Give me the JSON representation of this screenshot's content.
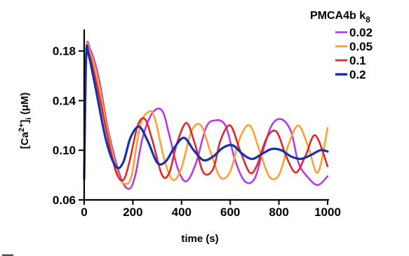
{
  "chart_data": {
    "type": "line",
    "xlabel": "time (s)",
    "ylabel": "[Ca2+]i (μM)",
    "ylabel_parts": {
      "base": "[Ca",
      "sup": "2+",
      "close": "]",
      "sub": "i",
      "unit": " (μM)"
    },
    "xlim": [
      0,
      1000
    ],
    "ylim": [
      0.06,
      0.19
    ],
    "x_ticks": [
      0,
      200,
      400,
      600,
      800,
      1000
    ],
    "x_tick_labels": [
      "0",
      "200",
      "400",
      "600",
      "800",
      "1000"
    ],
    "y_ticks": [
      0.06,
      0.1,
      0.14,
      0.18
    ],
    "y_tick_labels": [
      "0.06",
      "0.10",
      "0.14",
      "0.18"
    ],
    "legend": {
      "title": "PMCA4b k",
      "title_sub": "8",
      "placement": "top-right"
    },
    "grid": false,
    "series": [
      {
        "name": "0.02",
        "color": "#b43ce6",
        "x": [
          0,
          8,
          25,
          60,
          100,
          150,
          185,
          210,
          240,
          280,
          320,
          350,
          385,
          420,
          460,
          500,
          535,
          580,
          620,
          660,
          700,
          735,
          770,
          810,
          850,
          880,
          920,
          960,
          1000
        ],
        "y": [
          0.077,
          0.178,
          0.181,
          0.158,
          0.115,
          0.078,
          0.069,
          0.08,
          0.11,
          0.13,
          0.132,
          0.112,
          0.085,
          0.075,
          0.09,
          0.118,
          0.124,
          0.12,
          0.092,
          0.075,
          0.077,
          0.1,
          0.12,
          0.125,
          0.115,
          0.09,
          0.078,
          0.072,
          0.079
        ]
      },
      {
        "name": "0.05",
        "color": "#ffa030",
        "x": [
          0,
          8,
          22,
          55,
          100,
          140,
          170,
          195,
          230,
          265,
          290,
          330,
          365,
          400,
          440,
          480,
          520,
          560,
          600,
          640,
          680,
          720,
          760,
          800,
          840,
          880,
          920,
          960,
          1000
        ],
        "y": [
          0.077,
          0.177,
          0.18,
          0.158,
          0.112,
          0.08,
          0.073,
          0.08,
          0.12,
          0.131,
          0.126,
          0.092,
          0.076,
          0.086,
          0.115,
          0.12,
          0.098,
          0.078,
          0.083,
          0.11,
          0.12,
          0.1,
          0.079,
          0.08,
          0.105,
          0.12,
          0.103,
          0.082,
          0.118
        ]
      },
      {
        "name": "0.1",
        "color": "#e02828",
        "x": [
          0,
          8,
          20,
          50,
          95,
          130,
          160,
          185,
          220,
          250,
          280,
          320,
          350,
          380,
          420,
          455,
          490,
          530,
          560,
          600,
          640,
          680,
          710,
          750,
          790,
          830,
          870,
          910,
          950,
          1000
        ],
        "y": [
          0.077,
          0.176,
          0.178,
          0.155,
          0.112,
          0.083,
          0.076,
          0.09,
          0.12,
          0.125,
          0.108,
          0.08,
          0.082,
          0.105,
          0.122,
          0.105,
          0.082,
          0.085,
          0.108,
          0.12,
          0.1,
          0.082,
          0.088,
          0.11,
          0.115,
          0.095,
          0.082,
          0.096,
          0.112,
          0.087
        ]
      },
      {
        "name": "0.2",
        "color": "#1530b0",
        "x": [
          0,
          8,
          18,
          45,
          90,
          130,
          160,
          190,
          225,
          260,
          300,
          335,
          370,
          410,
          450,
          490,
          530,
          570,
          610,
          650,
          690,
          730,
          770,
          810,
          850,
          890,
          930,
          970,
          1000
        ],
        "y": [
          0.077,
          0.175,
          0.177,
          0.152,
          0.108,
          0.087,
          0.09,
          0.11,
          0.119,
          0.108,
          0.09,
          0.091,
          0.102,
          0.11,
          0.1,
          0.092,
          0.095,
          0.102,
          0.104,
          0.097,
          0.093,
          0.097,
          0.101,
          0.1,
          0.095,
          0.093,
          0.096,
          0.1,
          0.099
        ]
      }
    ]
  },
  "panel_mark": "—"
}
